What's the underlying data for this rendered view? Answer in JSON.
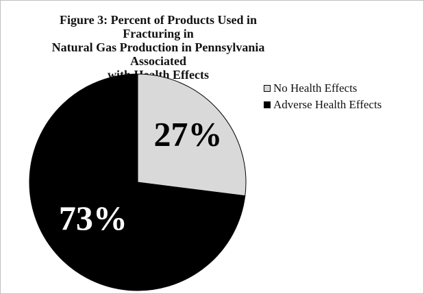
{
  "chart_data": {
    "type": "pie",
    "title": "Figure 3: Percent of Products Used in Fracturing in\nNatural Gas Production in Pennsylvania Associated\nwith Health Effects",
    "categories": [
      "No Health Effects",
      "Adverse Health Effects"
    ],
    "values": [
      27,
      73
    ],
    "labels": [
      "27%",
      "73%"
    ],
    "colors": [
      "#d9d9d9",
      "#000000"
    ],
    "label_colors": [
      "#000000",
      "#ffffff"
    ],
    "start_angle_deg": 0,
    "direction": "clockwise",
    "legend_position": "right"
  }
}
